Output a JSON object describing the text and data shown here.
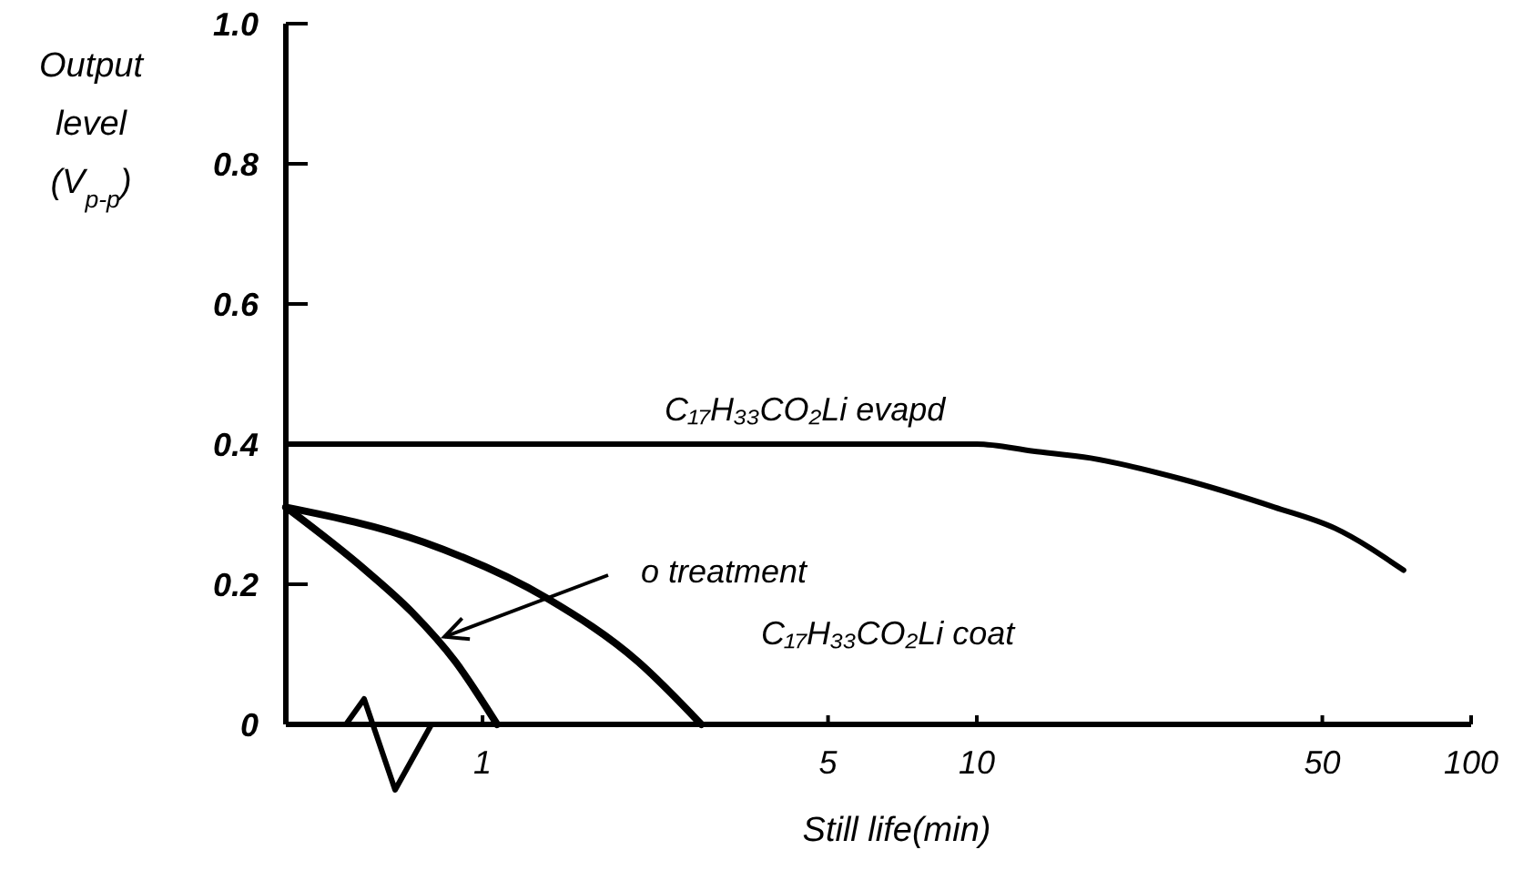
{
  "chart_data": {
    "type": "line",
    "xlabel": "Still life(min)",
    "ylabel": "Output level (V$_{p-p}$)",
    "log": "x",
    "xlim": [
      0.4,
      100
    ],
    "xticks": [
      1,
      5,
      10,
      50,
      100
    ],
    "ylim": [
      0,
      1
    ],
    "yticks": [
      0,
      0.2,
      0.4,
      0.6,
      0.8,
      {
        "value": 1,
        "label": "1.0"
      }
    ],
    "series": [
      {
        "name": "C₁₇H₃₃CO₂Li evapd",
        "color": "#000000",
        "x": [
          0.4,
          10,
          13,
          17,
          26,
          40,
          53,
          73
        ],
        "values": [
          0.4,
          0.4,
          0.39,
          0.38,
          0.35,
          0.31,
          0.28,
          0.22
        ]
      },
      {
        "name": "o treatment",
        "color": "#000000",
        "x": [
          0.4,
          0.58,
          0.72,
          0.88,
          1.07
        ],
        "values": [
          0.31,
          0.22,
          0.16,
          0.09,
          0
        ]
      },
      {
        "name": "C₁₇H₃₃CO₂Li coat",
        "color": "#000000",
        "x": [
          0.4,
          0.76,
          1.35,
          2.06,
          2.77
        ],
        "values": [
          0.31,
          0.26,
          0.18,
          0.09,
          0
        ]
      }
    ]
  }
}
